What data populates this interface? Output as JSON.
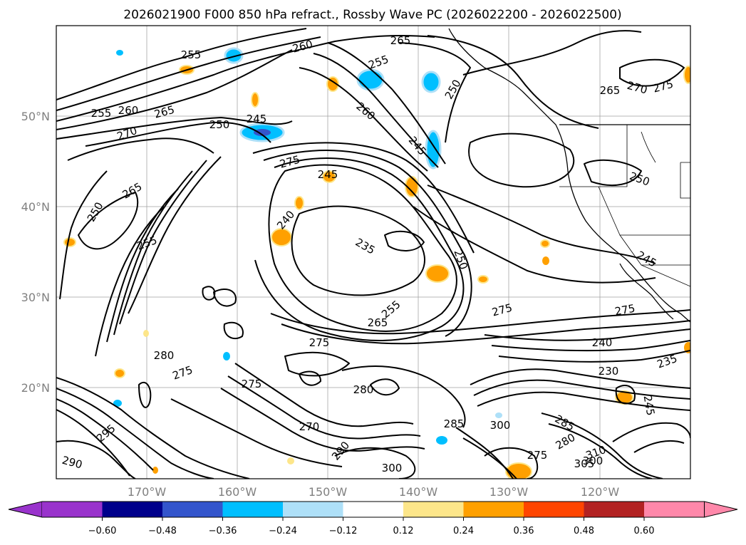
{
  "title": "2026021900 F000 850 hPa refract., Rossby Wave PC (2026022200 - 2026022500)",
  "map": {
    "lon_ticks": [
      "170°W",
      "160°W",
      "150°W",
      "140°W",
      "130°W",
      "120°W"
    ],
    "lat_ticks": [
      "50°N",
      "40°N",
      "30°N",
      "20°N"
    ],
    "grid": true,
    "coastlines": "North America west coast, Alaska panhandle, Baja California, Hawaiian Islands"
  },
  "colorbar": {
    "ticks": [
      "−0.60",
      "−0.48",
      "−0.36",
      "−0.24",
      "−0.12",
      "0.12",
      "0.24",
      "0.36",
      "0.48",
      "0.60"
    ],
    "colors": [
      "#9933cc",
      "#00008b",
      "#3355cc",
      "#00bfff",
      "#aee0f8",
      "#ffffff",
      "#fde68a",
      "#ffa000",
      "#ff4500",
      "#b22222",
      "#ff88aa"
    ],
    "extend": "both"
  },
  "contour_labels": [
    "255",
    "260",
    "265",
    "255",
    "250",
    "245",
    "270",
    "275",
    "265",
    "250",
    "245",
    "255",
    "265",
    "255",
    "250",
    "245",
    "260",
    "250",
    "265",
    "270",
    "275",
    "260",
    "275",
    "245",
    "240",
    "235",
    "250",
    "255",
    "275",
    "265",
    "275",
    "275",
    "240",
    "230",
    "235",
    "280",
    "275",
    "280",
    "290",
    "285",
    "300",
    "285",
    "280",
    "300",
    "295",
    "290",
    "270",
    "300",
    "275",
    "305",
    "310",
    "245"
  ]
}
